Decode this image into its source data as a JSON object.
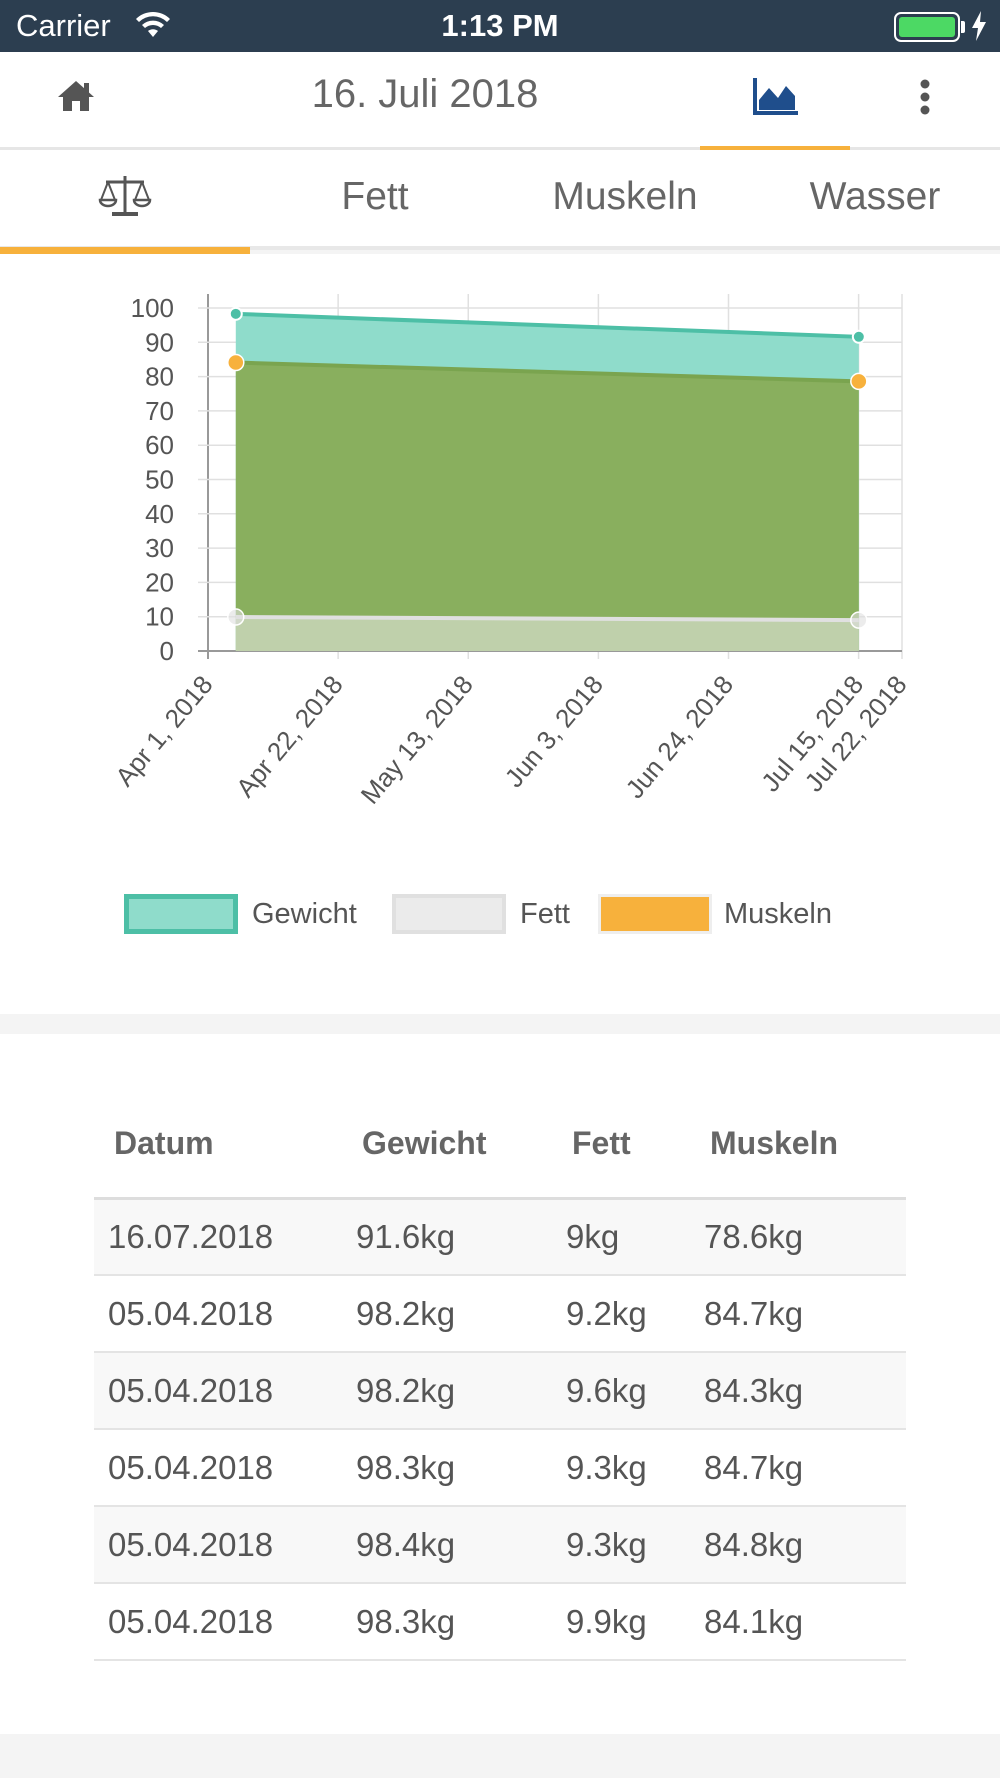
{
  "status_bar": {
    "carrier": "Carrier",
    "time": "1:13 PM",
    "battery_level": 1.0
  },
  "top_bar": {
    "title": "16. Juli 2018",
    "home_icon": "home-icon",
    "chart_icon": "area-chart-icon",
    "menu_icon": "more-vertical-icon",
    "accent": "#f7b13c"
  },
  "sub_tabs": [
    {
      "label": "",
      "icon": "scale-icon",
      "active": true
    },
    {
      "label": "Fett",
      "active": false
    },
    {
      "label": "Muskeln",
      "active": false
    },
    {
      "label": "Wasser",
      "active": false
    }
  ],
  "chart_data": {
    "type": "area",
    "x": [
      "2018-04-05",
      "2018-07-16"
    ],
    "x_tick_labels": [
      "Apr 1, 2018",
      "Apr 22, 2018",
      "May 13, 2018",
      "Jun 3, 2018",
      "Jun 24, 2018",
      "Jul 15, 2018",
      "Jul 22, 2018"
    ],
    "y_tick_labels": [
      "0",
      "10",
      "20",
      "30",
      "40",
      "50",
      "60",
      "70",
      "80",
      "90",
      "100"
    ],
    "ylim": [
      0,
      100
    ],
    "grid": true,
    "legend_position": "bottom",
    "series": [
      {
        "name": "Gewicht",
        "values": [
          98.3,
          91.6
        ],
        "color": "#4dbfa6",
        "fill": "#8fdccb"
      },
      {
        "name": "Fett",
        "values": [
          9.9,
          9.0
        ],
        "color": "#e0e0e0",
        "fill": "#ebebeb"
      },
      {
        "name": "Muskeln",
        "values": [
          84.1,
          78.6
        ],
        "color": "#f7b13c",
        "fill": "#89af5e"
      }
    ]
  },
  "table": {
    "headers": [
      "Datum",
      "Gewicht",
      "Fett",
      "Muskeln"
    ],
    "rows": [
      [
        "16.07.2018",
        "91.6kg",
        "9kg",
        "78.6kg"
      ],
      [
        "05.04.2018",
        "98.2kg",
        "9.2kg",
        "84.7kg"
      ],
      [
        "05.04.2018",
        "98.2kg",
        "9.6kg",
        "84.3kg"
      ],
      [
        "05.04.2018",
        "98.3kg",
        "9.3kg",
        "84.7kg"
      ],
      [
        "05.04.2018",
        "98.4kg",
        "9.3kg",
        "84.8kg"
      ],
      [
        "05.04.2018",
        "98.3kg",
        "9.9kg",
        "84.1kg"
      ]
    ]
  }
}
